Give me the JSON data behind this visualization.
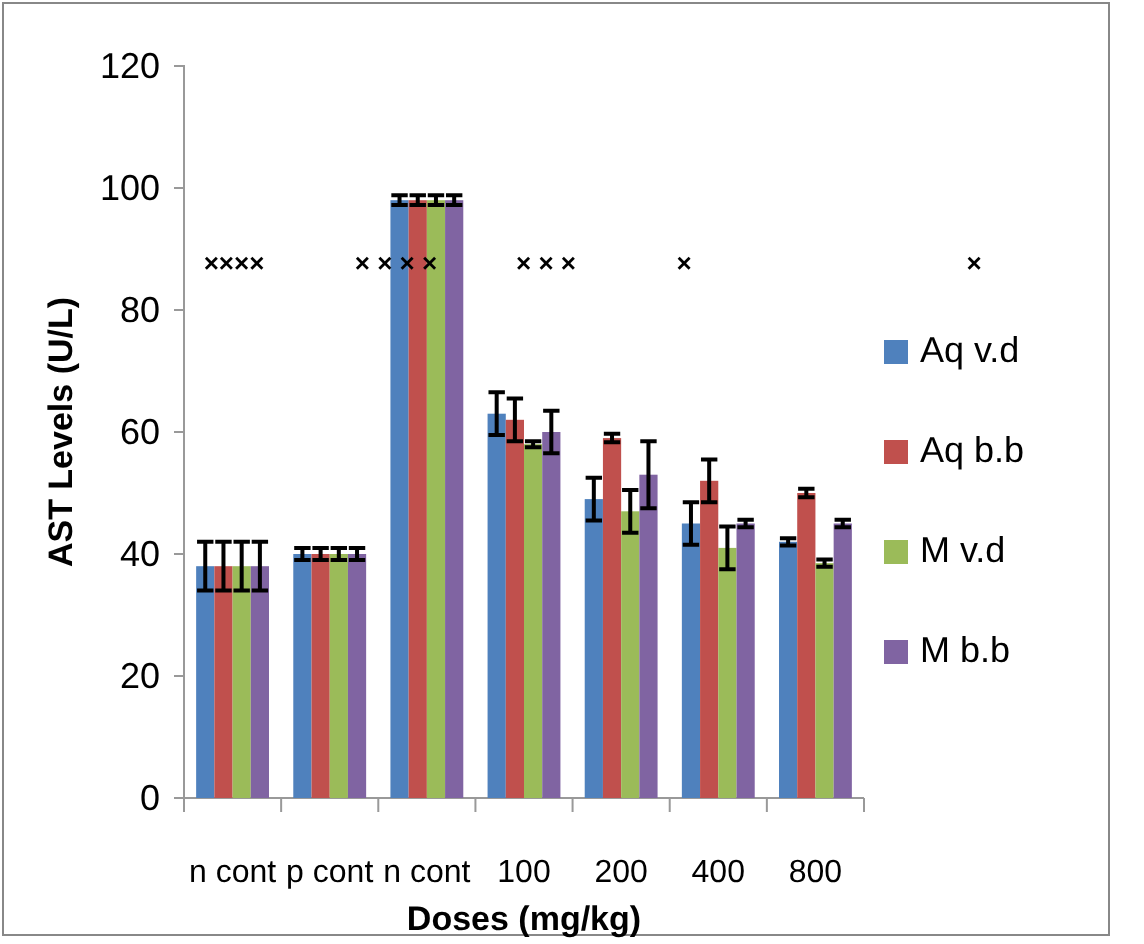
{
  "chart_data": {
    "type": "bar",
    "xlabel": "Doses  (mg/kg)",
    "ylabel": "AST Levels (U/L)",
    "categories": [
      "n cont",
      "p cont",
      "n cont",
      "100",
      "200",
      "400",
      "800"
    ],
    "series": [
      {
        "name": "Aq v.d",
        "color": "#4f81bd",
        "values": [
          38,
          40,
          98,
          63,
          49,
          45,
          42
        ],
        "errors": [
          4,
          1,
          0.8,
          3.5,
          3.5,
          3.5,
          0.6
        ]
      },
      {
        "name": "Aq b.b",
        "color": "#c0504d",
        "values": [
          38,
          40,
          98,
          62,
          59,
          52,
          50
        ],
        "errors": [
          4,
          1,
          0.8,
          3.5,
          0.7,
          3.5,
          0.7
        ]
      },
      {
        "name": "M v.d",
        "color": "#9bbb59",
        "values": [
          38,
          40,
          98,
          58,
          47,
          41,
          38.5
        ],
        "errors": [
          4,
          1,
          0.8,
          0.5,
          3.5,
          3.5,
          0.6
        ]
      },
      {
        "name": "M b.b",
        "color": "#8064a2",
        "values": [
          38,
          40,
          98,
          60,
          53,
          45,
          45
        ],
        "errors": [
          4,
          1,
          0.8,
          3.5,
          5.5,
          0.6,
          0.6
        ]
      }
    ],
    "ylim": [
      0,
      120
    ],
    "yticks": [
      0,
      20,
      40,
      60,
      80,
      100,
      120
    ],
    "grid": false,
    "legend": "right",
    "annotations": [
      "××××",
      "× × × ×",
      "× × ×",
      "×",
      "×"
    ]
  }
}
